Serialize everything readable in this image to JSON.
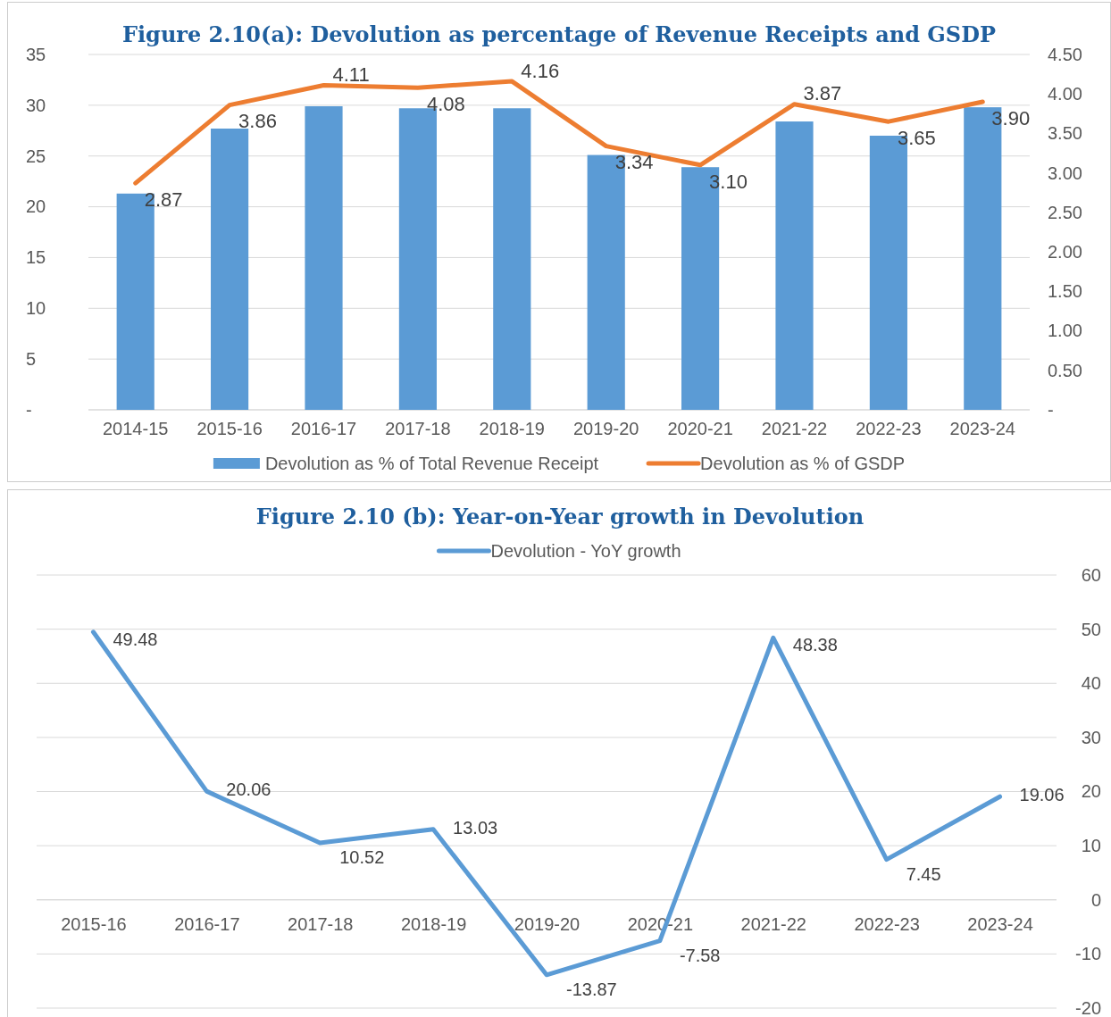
{
  "chart_data": [
    {
      "type": "bar",
      "title": "Figure 2.10(a): Devolution as percentage of Revenue Receipts and GSDP",
      "categories": [
        "2014-15",
        "2015-16",
        "2016-17",
        "2017-18",
        "2018-19",
        "2019-20",
        "2020-21",
        "2021-22",
        "2022-23",
        "2023-24"
      ],
      "series": [
        {
          "name": "Devolution as % of Total Revenue Receipt",
          "color": "#5b9bd5",
          "values": [
            21.3,
            27.7,
            29.9,
            29.7,
            29.7,
            25.1,
            23.9,
            28.4,
            27.0,
            29.8
          ]
        },
        {
          "name": "Devolution as % of GSDP",
          "type": "line",
          "axis": "y2",
          "color": "#ed7d31",
          "values": [
            2.87,
            3.86,
            4.11,
            4.08,
            4.16,
            3.34,
            3.1,
            3.87,
            3.65,
            3.9
          ],
          "value_labels": [
            "2.87",
            "3.86",
            "4.11",
            "4.08",
            "4.16",
            "3.34",
            "3.10",
            "3.87",
            "3.65",
            "3.90"
          ]
        }
      ],
      "ylim": [
        0,
        35
      ],
      "yticks": [
        {
          "value": 0,
          "label": "-"
        },
        5,
        10,
        15,
        20,
        25,
        30,
        35
      ],
      "y2lim": [
        0,
        4.5
      ],
      "y2ticks": [
        {
          "value": 0,
          "label": "-"
        },
        {
          "value": 0.5,
          "label": "0.50"
        },
        {
          "value": 1,
          "label": "1.00"
        },
        {
          "value": 1.5,
          "label": "1.50"
        },
        {
          "value": 2,
          "label": "2.00"
        },
        {
          "value": 2.5,
          "label": "2.50"
        },
        {
          "value": 3,
          "label": "3.00"
        },
        {
          "value": 3.5,
          "label": "3.50"
        },
        {
          "value": 4,
          "label": "4.00"
        },
        {
          "value": 4.5,
          "label": "4.50"
        }
      ],
      "grid": "y",
      "legend": "bottom"
    },
    {
      "type": "line",
      "title": "Figure 2.10 (b): Year-on-Year growth in Devolution",
      "categories": [
        "2015-16",
        "2016-17",
        "2017-18",
        "2018-19",
        "2019-20",
        "2020-21",
        "2021-22",
        "2022-23",
        "2023-24"
      ],
      "series": [
        {
          "name": "Devolution - YoY growth",
          "color": "#5b9bd5",
          "values": [
            49.48,
            20.06,
            10.52,
            13.03,
            -13.87,
            -7.58,
            48.38,
            7.45,
            19.06
          ]
        }
      ],
      "ylim": [
        -20,
        60
      ],
      "yticks": [
        -20,
        -10,
        0,
        10,
        20,
        30,
        40,
        50,
        60
      ],
      "grid": "y",
      "legend": "top",
      "data_labels": true,
      "marker": "none",
      "line_style": "solid"
    }
  ]
}
